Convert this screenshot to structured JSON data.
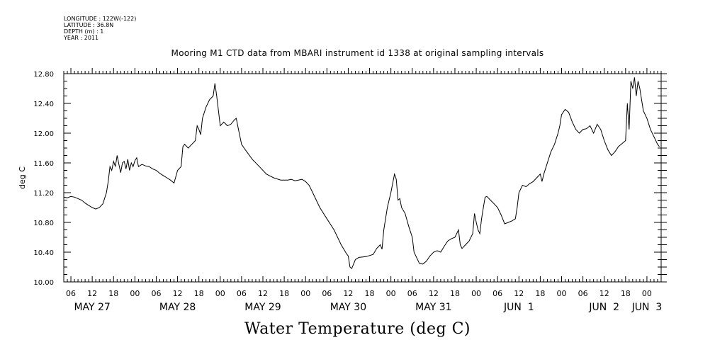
{
  "meta": {
    "longitude": "LONGITUDE : 122W(-122)",
    "latitude": "LATITUDE : 36.8N",
    "depth": "DEPTH (m) : 1",
    "year": "YEAR : 2011"
  },
  "chart_data": {
    "type": "line",
    "title": "Mooring M1 CTD data from MBARI instrument id 1338 at original sampling intervals",
    "xlabel": "Water Temperature (deg C)",
    "ylabel": "deg C",
    "ylim": [
      10.0,
      12.8
    ],
    "yticks": [
      "10.00",
      "10.40",
      "10.80",
      "11.20",
      "11.60",
      "12.00",
      "12.40",
      "12.80"
    ],
    "x_unit": "hours since May 27 00:00",
    "xlim": [
      4,
      172
    ],
    "x_hour_ticks": [
      {
        "h": 6,
        "label": "06"
      },
      {
        "h": 12,
        "label": "12"
      },
      {
        "h": 18,
        "label": "18"
      },
      {
        "h": 24,
        "label": "00"
      },
      {
        "h": 30,
        "label": "06"
      },
      {
        "h": 36,
        "label": "12"
      },
      {
        "h": 42,
        "label": "18"
      },
      {
        "h": 48,
        "label": "00"
      },
      {
        "h": 54,
        "label": "06"
      },
      {
        "h": 60,
        "label": "12"
      },
      {
        "h": 66,
        "label": "18"
      },
      {
        "h": 72,
        "label": "00"
      },
      {
        "h": 78,
        "label": "06"
      },
      {
        "h": 84,
        "label": "12"
      },
      {
        "h": 90,
        "label": "18"
      },
      {
        "h": 96,
        "label": "00"
      },
      {
        "h": 102,
        "label": "06"
      },
      {
        "h": 108,
        "label": "12"
      },
      {
        "h": 114,
        "label": "18"
      },
      {
        "h": 120,
        "label": "00"
      },
      {
        "h": 126,
        "label": "06"
      },
      {
        "h": 132,
        "label": "12"
      },
      {
        "h": 138,
        "label": "18"
      },
      {
        "h": 144,
        "label": "00"
      },
      {
        "h": 150,
        "label": "06"
      },
      {
        "h": 156,
        "label": "12"
      },
      {
        "h": 162,
        "label": "18"
      },
      {
        "h": 168,
        "label": "00"
      }
    ],
    "date_labels": [
      {
        "h": 12,
        "label": "MAY 27"
      },
      {
        "h": 36,
        "label": "MAY 28"
      },
      {
        "h": 60,
        "label": "MAY 29"
      },
      {
        "h": 84,
        "label": "MAY 30"
      },
      {
        "h": 108,
        "label": "MAY 31"
      },
      {
        "h": 132,
        "label": "JUN  1"
      },
      {
        "h": 156,
        "label": "JUN  2"
      },
      {
        "h": 168,
        "label": "JUN  3"
      }
    ],
    "grid": false,
    "series": [
      {
        "points": [
          [
            4,
            11.14
          ],
          [
            5,
            11.13
          ],
          [
            6,
            11.15
          ],
          [
            7,
            11.14
          ],
          [
            8,
            11.12
          ],
          [
            9,
            11.1
          ],
          [
            10,
            11.06
          ],
          [
            11,
            11.03
          ],
          [
            12,
            11.0
          ],
          [
            13,
            10.98
          ],
          [
            14,
            11.0
          ],
          [
            15,
            11.05
          ],
          [
            16,
            11.2
          ],
          [
            16.5,
            11.35
          ],
          [
            17,
            11.55
          ],
          [
            17.5,
            11.5
          ],
          [
            18,
            11.62
          ],
          [
            18.5,
            11.55
          ],
          [
            19,
            11.7
          ],
          [
            19.5,
            11.58
          ],
          [
            20,
            11.47
          ],
          [
            20.5,
            11.6
          ],
          [
            21,
            11.62
          ],
          [
            21.5,
            11.52
          ],
          [
            22,
            11.65
          ],
          [
            22.5,
            11.5
          ],
          [
            23,
            11.6
          ],
          [
            23.5,
            11.55
          ],
          [
            24,
            11.63
          ],
          [
            24.5,
            11.67
          ],
          [
            25,
            11.55
          ],
          [
            26,
            11.58
          ],
          [
            27,
            11.56
          ],
          [
            28,
            11.55
          ],
          [
            29,
            11.52
          ],
          [
            30,
            11.5
          ],
          [
            31,
            11.46
          ],
          [
            32,
            11.43
          ],
          [
            33,
            11.4
          ],
          [
            34,
            11.37
          ],
          [
            35,
            11.33
          ],
          [
            36,
            11.5
          ],
          [
            37,
            11.55
          ],
          [
            37.5,
            11.82
          ],
          [
            38,
            11.85
          ],
          [
            39,
            11.8
          ],
          [
            40,
            11.85
          ],
          [
            41,
            11.9
          ],
          [
            41.5,
            12.1
          ],
          [
            42,
            12.05
          ],
          [
            42.5,
            11.98
          ],
          [
            43,
            12.2
          ],
          [
            44,
            12.35
          ],
          [
            45,
            12.45
          ],
          [
            46,
            12.5
          ],
          [
            46.5,
            12.67
          ],
          [
            47,
            12.5
          ],
          [
            47.5,
            12.3
          ],
          [
            48,
            12.1
          ],
          [
            49,
            12.15
          ],
          [
            50,
            12.1
          ],
          [
            51,
            12.12
          ],
          [
            52,
            12.18
          ],
          [
            52.5,
            12.2
          ],
          [
            53,
            12.08
          ],
          [
            54,
            11.85
          ],
          [
            55,
            11.78
          ],
          [
            57,
            11.65
          ],
          [
            59,
            11.55
          ],
          [
            61,
            11.45
          ],
          [
            63,
            11.4
          ],
          [
            65,
            11.37
          ],
          [
            67,
            11.37
          ],
          [
            68,
            11.38
          ],
          [
            69,
            11.36
          ],
          [
            70,
            11.37
          ],
          [
            71,
            11.38
          ],
          [
            72,
            11.35
          ],
          [
            73,
            11.3
          ],
          [
            74,
            11.2
          ],
          [
            76,
            11.0
          ],
          [
            78,
            10.85
          ],
          [
            80,
            10.7
          ],
          [
            81,
            10.6
          ],
          [
            82,
            10.5
          ],
          [
            83,
            10.42
          ],
          [
            83.5,
            10.38
          ],
          [
            84,
            10.35
          ],
          [
            84.5,
            10.2
          ],
          [
            85,
            10.18
          ],
          [
            86,
            10.3
          ],
          [
            87,
            10.33
          ],
          [
            89,
            10.34
          ],
          [
            91,
            10.37
          ],
          [
            92,
            10.45
          ],
          [
            93,
            10.5
          ],
          [
            93.5,
            10.44
          ],
          [
            94,
            10.7
          ],
          [
            95,
            11.0
          ],
          [
            96,
            11.2
          ],
          [
            97,
            11.45
          ],
          [
            97.5,
            11.38
          ],
          [
            98,
            11.1
          ],
          [
            98.5,
            11.12
          ],
          [
            99,
            11.0
          ],
          [
            100,
            10.92
          ],
          [
            101,
            10.75
          ],
          [
            102,
            10.6
          ],
          [
            102.5,
            10.4
          ],
          [
            103,
            10.35
          ],
          [
            104,
            10.25
          ],
          [
            105,
            10.24
          ],
          [
            106,
            10.28
          ],
          [
            107,
            10.35
          ],
          [
            108,
            10.4
          ],
          [
            109,
            10.42
          ],
          [
            110,
            10.4
          ],
          [
            111,
            10.48
          ],
          [
            112,
            10.55
          ],
          [
            113,
            10.58
          ],
          [
            114,
            10.6
          ],
          [
            115,
            10.7
          ],
          [
            115.5,
            10.5
          ],
          [
            116,
            10.45
          ],
          [
            117,
            10.5
          ],
          [
            118,
            10.55
          ],
          [
            119,
            10.65
          ],
          [
            119.5,
            10.92
          ],
          [
            120,
            10.8
          ],
          [
            120.5,
            10.7
          ],
          [
            121,
            10.65
          ],
          [
            121.5,
            10.85
          ],
          [
            122,
            11.0
          ],
          [
            122.5,
            11.14
          ],
          [
            123,
            11.15
          ],
          [
            124,
            11.1
          ],
          [
            125,
            11.05
          ],
          [
            126,
            11.0
          ],
          [
            127,
            10.9
          ],
          [
            128,
            10.78
          ],
          [
            129,
            10.8
          ],
          [
            130,
            10.82
          ],
          [
            131,
            10.85
          ],
          [
            131.5,
            11.0
          ],
          [
            132,
            11.2
          ],
          [
            133,
            11.3
          ],
          [
            134,
            11.28
          ],
          [
            135,
            11.32
          ],
          [
            136,
            11.35
          ],
          [
            137,
            11.4
          ],
          [
            138,
            11.45
          ],
          [
            138.5,
            11.35
          ],
          [
            139,
            11.45
          ],
          [
            140,
            11.6
          ],
          [
            141,
            11.75
          ],
          [
            142,
            11.85
          ],
          [
            143,
            12.0
          ],
          [
            143.5,
            12.1
          ],
          [
            144,
            12.25
          ],
          [
            145,
            12.32
          ],
          [
            146,
            12.28
          ],
          [
            147,
            12.15
          ],
          [
            148,
            12.05
          ],
          [
            149,
            12.0
          ],
          [
            150,
            12.05
          ],
          [
            151,
            12.06
          ],
          [
            152,
            12.1
          ],
          [
            153,
            12.0
          ],
          [
            154,
            12.12
          ],
          [
            155,
            12.05
          ],
          [
            156,
            11.9
          ],
          [
            157,
            11.78
          ],
          [
            158,
            11.7
          ],
          [
            159,
            11.75
          ],
          [
            160,
            11.82
          ],
          [
            161,
            11.86
          ],
          [
            162,
            11.9
          ],
          [
            162.5,
            12.4
          ],
          [
            163,
            12.05
          ],
          [
            163.5,
            12.7
          ],
          [
            164,
            12.6
          ],
          [
            164.5,
            12.75
          ],
          [
            165,
            12.5
          ],
          [
            165.5,
            12.7
          ],
          [
            166,
            12.6
          ],
          [
            167,
            12.3
          ],
          [
            168,
            12.2
          ],
          [
            169,
            12.05
          ],
          [
            170,
            11.95
          ],
          [
            171,
            11.85
          ],
          [
            171.5,
            11.82
          ]
        ]
      }
    ]
  }
}
